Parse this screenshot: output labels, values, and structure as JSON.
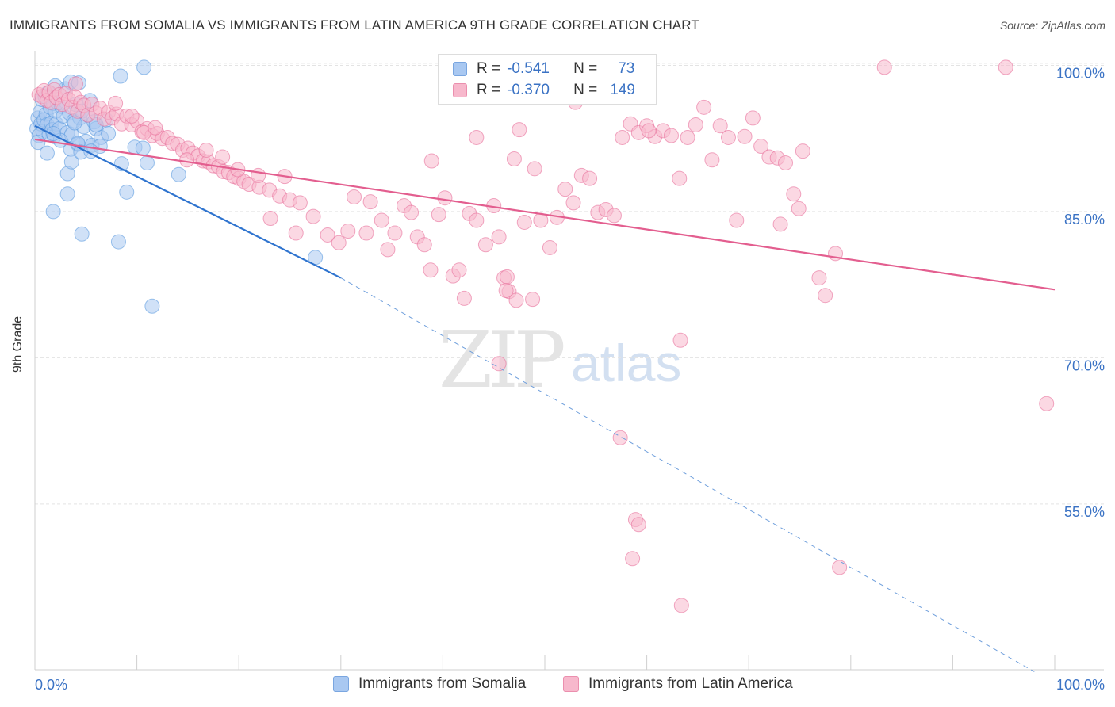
{
  "title": "IMMIGRANTS FROM SOMALIA VS IMMIGRANTS FROM LATIN AMERICA 9TH GRADE CORRELATION CHART",
  "source": "Source: ZipAtlas.com",
  "watermark": {
    "zip": "ZIP",
    "atlas": "atlas"
  },
  "stats": [
    {
      "r_label": "R =",
      "r_value": "-0.541",
      "n_label": "N =",
      "n_value": "73",
      "color": "#a9c8f1",
      "border": "#7aa6e0"
    },
    {
      "r_label": "R =",
      "r_value": "-0.370",
      "n_label": "N =",
      "n_value": "149",
      "color": "#f7b8cc",
      "border": "#eb8fae"
    }
  ],
  "legend": [
    {
      "label": "Immigrants from Somalia",
      "color": "#a9c8f1",
      "border": "#7aa6e0"
    },
    {
      "label": "Immigrants from Latin America",
      "color": "#f7b8cc",
      "border": "#eb8fae"
    }
  ],
  "chart_data": {
    "type": "scatter",
    "title": "IMMIGRANTS FROM SOMALIA VS IMMIGRANTS FROM LATIN AMERICA 9TH GRADE CORRELATION CHART",
    "xlabel": "",
    "ylabel": "9th Grade",
    "xlim": [
      0,
      100
    ],
    "ylim": [
      38,
      101.5
    ],
    "x_tick_labels": [
      "0.0%",
      "100.0%"
    ],
    "y_ticks": [
      100,
      85,
      70,
      55
    ],
    "y_tick_labels": [
      "100.0%",
      "85.0%",
      "70.0%",
      "55.0%"
    ],
    "grid": true,
    "legend_position": "bottom",
    "series": [
      {
        "name": "Immigrants from Somalia",
        "color": "#5b9be0",
        "fill": "#a9c8f1",
        "trend": {
          "x": [
            0,
            30
          ],
          "y": [
            93.8,
            78.2
          ],
          "extend_to_x": 98,
          "extend_to_y": 37.8
        },
        "points": [
          [
            0.2,
            93.5
          ],
          [
            0.3,
            94.6
          ],
          [
            0.4,
            92.8
          ],
          [
            0.5,
            95.2
          ],
          [
            0.6,
            94.0
          ],
          [
            0.7,
            96.5
          ],
          [
            0.8,
            93.2
          ],
          [
            0.9,
            94.4
          ],
          [
            1.0,
            96.8
          ],
          [
            1.1,
            95.0
          ],
          [
            1.2,
            93.9
          ],
          [
            1.3,
            97.2
          ],
          [
            1.4,
            92.9
          ],
          [
            1.5,
            95.7
          ],
          [
            1.6,
            94.1
          ],
          [
            1.7,
            93.4
          ],
          [
            1.8,
            96.1
          ],
          [
            1.9,
            92.7
          ],
          [
            2.0,
            95.3
          ],
          [
            2.1,
            94.0
          ],
          [
            2.2,
            96.2
          ],
          [
            2.4,
            93.5
          ],
          [
            2.6,
            95.8
          ],
          [
            2.8,
            94.8
          ],
          [
            3.0,
            97.6
          ],
          [
            3.2,
            93.1
          ],
          [
            3.4,
            95.1
          ],
          [
            3.6,
            92.9
          ],
          [
            3.8,
            94.3
          ],
          [
            4.0,
            96.0
          ],
          [
            4.2,
            91.9
          ],
          [
            4.4,
            94.6
          ],
          [
            4.6,
            95.3
          ],
          [
            4.8,
            93.7
          ],
          [
            5.0,
            92.2
          ],
          [
            5.2,
            94.9
          ],
          [
            5.4,
            96.4
          ],
          [
            5.6,
            91.8
          ],
          [
            5.8,
            94.2
          ],
          [
            6.0,
            93.5
          ],
          [
            6.5,
            92.6
          ],
          [
            7.0,
            94.4
          ],
          [
            2.0,
            97.9
          ],
          [
            3.5,
            98.3
          ],
          [
            4.3,
            98.2
          ],
          [
            1.2,
            91.0
          ],
          [
            3.2,
            88.9
          ],
          [
            3.5,
            91.4
          ],
          [
            3.6,
            90.1
          ],
          [
            4.2,
            92.0
          ],
          [
            4.5,
            91.1
          ],
          [
            6.4,
            91.7
          ],
          [
            2.5,
            92.3
          ],
          [
            1.8,
            93.0
          ],
          [
            5.5,
            91.2
          ],
          [
            8.4,
            98.9
          ],
          [
            10.7,
            99.8
          ],
          [
            8.5,
            89.9
          ],
          [
            9.8,
            91.6
          ],
          [
            11.0,
            90.0
          ],
          [
            10.6,
            91.5
          ],
          [
            14.1,
            88.8
          ],
          [
            3.2,
            86.8
          ],
          [
            9.0,
            87.0
          ],
          [
            1.8,
            85.0
          ],
          [
            4.6,
            82.7
          ],
          [
            8.2,
            81.9
          ],
          [
            11.5,
            75.3
          ],
          [
            27.5,
            80.3
          ],
          [
            0.3,
            92.1
          ],
          [
            6.0,
            93.9
          ],
          [
            7.2,
            93.0
          ],
          [
            3.9,
            94.1
          ]
        ]
      },
      {
        "name": "Immigrants from Latin America",
        "color": "#e8709b",
        "fill": "#f7b8cc",
        "trend": {
          "x": [
            0,
            100
          ],
          "y": [
            92.4,
            77.0
          ]
        },
        "points": [
          [
            0.4,
            97.0
          ],
          [
            0.7,
            96.8
          ],
          [
            0.9,
            97.4
          ],
          [
            1.2,
            96.4
          ],
          [
            1.4,
            97.2
          ],
          [
            1.6,
            96.2
          ],
          [
            1.9,
            97.5
          ],
          [
            2.1,
            96.7
          ],
          [
            2.4,
            97.0
          ],
          [
            2.7,
            96.0
          ],
          [
            3.0,
            97.1
          ],
          [
            3.3,
            96.5
          ],
          [
            3.6,
            95.7
          ],
          [
            3.9,
            96.8
          ],
          [
            4.2,
            95.3
          ],
          [
            4.5,
            96.2
          ],
          [
            4.8,
            95.9
          ],
          [
            5.2,
            94.9
          ],
          [
            5.6,
            96.0
          ],
          [
            6.0,
            95.1
          ],
          [
            6.4,
            95.6
          ],
          [
            6.8,
            94.5
          ],
          [
            7.2,
            95.2
          ],
          [
            7.6,
            94.6
          ],
          [
            8.0,
            95.0
          ],
          [
            8.5,
            94.0
          ],
          [
            9.0,
            94.8
          ],
          [
            9.5,
            93.9
          ],
          [
            10.0,
            94.3
          ],
          [
            10.5,
            93.2
          ],
          [
            11.0,
            93.5
          ],
          [
            11.5,
            92.8
          ],
          [
            12.0,
            93.0
          ],
          [
            12.5,
            92.5
          ],
          [
            13.0,
            92.6
          ],
          [
            13.5,
            92.0
          ],
          [
            14.0,
            91.9
          ],
          [
            14.5,
            91.3
          ],
          [
            15.0,
            91.5
          ],
          [
            15.5,
            91.0
          ],
          [
            16.0,
            90.7
          ],
          [
            16.5,
            90.2
          ],
          [
            17.0,
            90.1
          ],
          [
            17.5,
            89.7
          ],
          [
            18.0,
            89.6
          ],
          [
            18.5,
            89.1
          ],
          [
            19.0,
            89.0
          ],
          [
            19.5,
            88.6
          ],
          [
            20.0,
            88.4
          ],
          [
            20.5,
            88.1
          ],
          [
            21.0,
            87.8
          ],
          [
            22.0,
            87.5
          ],
          [
            23.0,
            87.2
          ],
          [
            24.0,
            86.6
          ],
          [
            25.0,
            86.2
          ],
          [
            26.0,
            85.9
          ],
          [
            14.9,
            90.3
          ],
          [
            16.8,
            91.3
          ],
          [
            18.4,
            90.6
          ],
          [
            19.9,
            89.3
          ],
          [
            21.9,
            88.7
          ],
          [
            24.5,
            88.6
          ],
          [
            10.7,
            93.1
          ],
          [
            11.8,
            93.6
          ],
          [
            9.5,
            94.8
          ],
          [
            4.0,
            98.1
          ],
          [
            7.9,
            96.1
          ],
          [
            23.1,
            84.3
          ],
          [
            25.6,
            82.8
          ],
          [
            27.3,
            84.5
          ],
          [
            28.7,
            82.6
          ],
          [
            29.8,
            81.8
          ],
          [
            30.7,
            83.0
          ],
          [
            31.3,
            86.5
          ],
          [
            32.5,
            82.8
          ],
          [
            32.9,
            86.0
          ],
          [
            34.0,
            84.1
          ],
          [
            34.6,
            81.1
          ],
          [
            35.3,
            82.8
          ],
          [
            36.2,
            85.6
          ],
          [
            36.9,
            84.9
          ],
          [
            37.5,
            82.4
          ],
          [
            38.2,
            81.6
          ],
          [
            38.8,
            79.0
          ],
          [
            39.6,
            84.7
          ],
          [
            40.2,
            86.4
          ],
          [
            41.0,
            78.4
          ],
          [
            41.6,
            79.0
          ],
          [
            42.1,
            76.1
          ],
          [
            42.6,
            84.8
          ],
          [
            43.3,
            84.1
          ],
          [
            44.2,
            81.6
          ],
          [
            45.0,
            85.6
          ],
          [
            45.5,
            82.4
          ],
          [
            46.0,
            78.2
          ],
          [
            46.5,
            76.8
          ],
          [
            47.2,
            75.9
          ],
          [
            48.0,
            83.9
          ],
          [
            48.8,
            76.0
          ],
          [
            49.6,
            84.1
          ],
          [
            50.5,
            81.3
          ],
          [
            51.2,
            84.4
          ],
          [
            52.0,
            87.3
          ],
          [
            52.8,
            85.9
          ],
          [
            53.6,
            88.7
          ],
          [
            54.4,
            88.4
          ],
          [
            55.2,
            84.9
          ],
          [
            56.0,
            85.2
          ],
          [
            56.8,
            84.6
          ],
          [
            57.6,
            92.6
          ],
          [
            58.4,
            94.0
          ],
          [
            59.2,
            93.1
          ],
          [
            60.0,
            93.8
          ],
          [
            60.8,
            92.7
          ],
          [
            61.6,
            93.3
          ],
          [
            62.4,
            92.8
          ],
          [
            63.2,
            88.4
          ],
          [
            64.0,
            92.6
          ],
          [
            64.8,
            93.9
          ],
          [
            65.6,
            95.7
          ],
          [
            66.4,
            90.3
          ],
          [
            67.2,
            93.8
          ],
          [
            68.0,
            92.6
          ],
          [
            68.8,
            84.1
          ],
          [
            69.6,
            92.7
          ],
          [
            70.4,
            94.6
          ],
          [
            71.2,
            91.7
          ],
          [
            72.0,
            90.6
          ],
          [
            72.8,
            90.5
          ],
          [
            73.6,
            90.0
          ],
          [
            74.4,
            86.8
          ],
          [
            74.9,
            85.3
          ],
          [
            73.1,
            83.7
          ],
          [
            76.9,
            78.2
          ],
          [
            77.5,
            76.4
          ],
          [
            78.5,
            80.7
          ],
          [
            75.3,
            91.2
          ],
          [
            47.5,
            93.4
          ],
          [
            49.0,
            89.4
          ],
          [
            53.0,
            96.2
          ],
          [
            46.3,
            78.3
          ],
          [
            45.5,
            69.4
          ],
          [
            46.2,
            76.9
          ],
          [
            57.4,
            61.8
          ],
          [
            58.9,
            53.4
          ],
          [
            59.2,
            52.9
          ],
          [
            63.3,
            71.8
          ],
          [
            60.2,
            93.3
          ],
          [
            58.6,
            49.4
          ],
          [
            63.4,
            44.6
          ],
          [
            78.9,
            48.5
          ],
          [
            83.3,
            99.8
          ],
          [
            95.2,
            99.8
          ],
          [
            99.2,
            65.3
          ],
          [
            38.9,
            90.2
          ],
          [
            43.3,
            92.6
          ],
          [
            47.0,
            90.4
          ]
        ]
      }
    ]
  }
}
